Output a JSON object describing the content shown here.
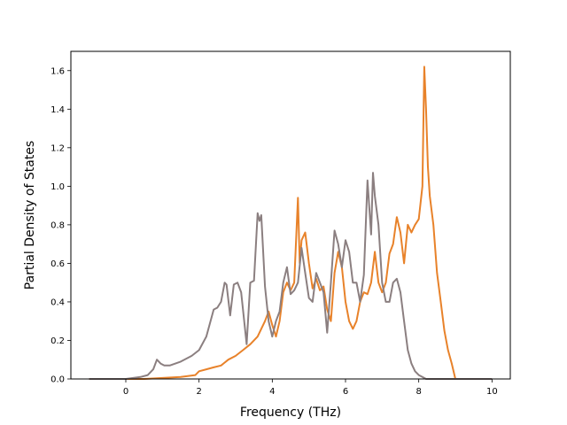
{
  "chart_data": {
    "type": "line",
    "title": "",
    "xlabel": "Frequency (THz)",
    "ylabel": "Partial Density of States",
    "xlim": [
      -1.5,
      10.5
    ],
    "ylim": [
      0,
      1.7
    ],
    "xticks": [
      0,
      2,
      4,
      6,
      8,
      10
    ],
    "yticks": [
      0.0,
      0.2,
      0.4,
      0.6,
      0.8,
      1.0,
      1.2,
      1.4,
      1.6
    ],
    "xtick_labels": [
      "0",
      "2",
      "4",
      "6",
      "8",
      "10"
    ],
    "ytick_labels": [
      "0.0",
      "0.2",
      "0.4",
      "0.6",
      "0.8",
      "1.0",
      "1.2",
      "1.4",
      "1.6"
    ],
    "grid": false,
    "legend": "none",
    "series": [
      {
        "color": "#e8822a",
        "x": [
          -1.0,
          0.0,
          0.5,
          1.0,
          1.5,
          1.9,
          2.0,
          2.2,
          2.4,
          2.6,
          2.8,
          3.0,
          3.2,
          3.4,
          3.6,
          3.8,
          3.9,
          4.0,
          4.1,
          4.2,
          4.3,
          4.4,
          4.5,
          4.6,
          4.7,
          4.75,
          4.8,
          4.9,
          5.0,
          5.1,
          5.2,
          5.3,
          5.4,
          5.5,
          5.6,
          5.7,
          5.8,
          5.9,
          6.0,
          6.1,
          6.2,
          6.3,
          6.4,
          6.5,
          6.6,
          6.7,
          6.8,
          6.9,
          7.0,
          7.1,
          7.2,
          7.3,
          7.4,
          7.5,
          7.6,
          7.7,
          7.8,
          7.9,
          8.0,
          8.1,
          8.15,
          8.2,
          8.25,
          8.3,
          8.4,
          8.5,
          8.6,
          8.7,
          8.8,
          8.9,
          9.0,
          9.1
        ],
        "y": [
          0.0,
          0.0,
          0.0,
          0.005,
          0.01,
          0.02,
          0.04,
          0.05,
          0.06,
          0.07,
          0.1,
          0.12,
          0.15,
          0.18,
          0.22,
          0.3,
          0.35,
          0.28,
          0.22,
          0.3,
          0.45,
          0.5,
          0.46,
          0.5,
          0.94,
          0.6,
          0.72,
          0.76,
          0.6,
          0.47,
          0.52,
          0.46,
          0.48,
          0.36,
          0.3,
          0.55,
          0.66,
          0.58,
          0.4,
          0.3,
          0.26,
          0.3,
          0.4,
          0.45,
          0.44,
          0.5,
          0.66,
          0.5,
          0.45,
          0.5,
          0.65,
          0.7,
          0.84,
          0.76,
          0.6,
          0.8,
          0.76,
          0.8,
          0.83,
          1.0,
          1.62,
          1.4,
          1.1,
          0.95,
          0.8,
          0.55,
          0.4,
          0.25,
          0.15,
          0.08,
          0.0,
          0.0
        ]
      },
      {
        "color": "#8b7f80",
        "x": [
          -1.0,
          0.0,
          0.4,
          0.6,
          0.75,
          0.85,
          0.95,
          1.05,
          1.2,
          1.5,
          1.8,
          2.0,
          2.2,
          2.4,
          2.5,
          2.6,
          2.7,
          2.75,
          2.85,
          2.95,
          3.05,
          3.15,
          3.3,
          3.4,
          3.5,
          3.6,
          3.65,
          3.7,
          3.8,
          3.9,
          4.0,
          4.1,
          4.2,
          4.3,
          4.4,
          4.5,
          4.6,
          4.7,
          4.8,
          4.9,
          5.0,
          5.1,
          5.2,
          5.3,
          5.4,
          5.5,
          5.6,
          5.7,
          5.8,
          5.9,
          6.0,
          6.1,
          6.2,
          6.3,
          6.4,
          6.5,
          6.6,
          6.7,
          6.75,
          6.8,
          6.9,
          7.0,
          7.1,
          7.2,
          7.3,
          7.4,
          7.5,
          7.6,
          7.7,
          7.8,
          7.9,
          8.0,
          8.1,
          8.2,
          8.3,
          8.5,
          8.8,
          9.0,
          10.0
        ],
        "y": [
          0.0,
          0.0,
          0.01,
          0.02,
          0.05,
          0.1,
          0.08,
          0.07,
          0.07,
          0.09,
          0.12,
          0.15,
          0.22,
          0.36,
          0.37,
          0.4,
          0.5,
          0.49,
          0.33,
          0.49,
          0.5,
          0.45,
          0.18,
          0.5,
          0.51,
          0.86,
          0.82,
          0.85,
          0.48,
          0.3,
          0.22,
          0.3,
          0.35,
          0.5,
          0.58,
          0.44,
          0.46,
          0.5,
          0.68,
          0.55,
          0.42,
          0.4,
          0.55,
          0.5,
          0.45,
          0.24,
          0.5,
          0.77,
          0.7,
          0.58,
          0.72,
          0.66,
          0.5,
          0.5,
          0.4,
          0.54,
          1.03,
          0.75,
          1.07,
          0.95,
          0.8,
          0.5,
          0.4,
          0.4,
          0.5,
          0.52,
          0.45,
          0.3,
          0.15,
          0.08,
          0.04,
          0.02,
          0.01,
          0.0,
          0.0,
          0.0,
          0.0,
          0.0,
          0.0
        ]
      }
    ]
  }
}
